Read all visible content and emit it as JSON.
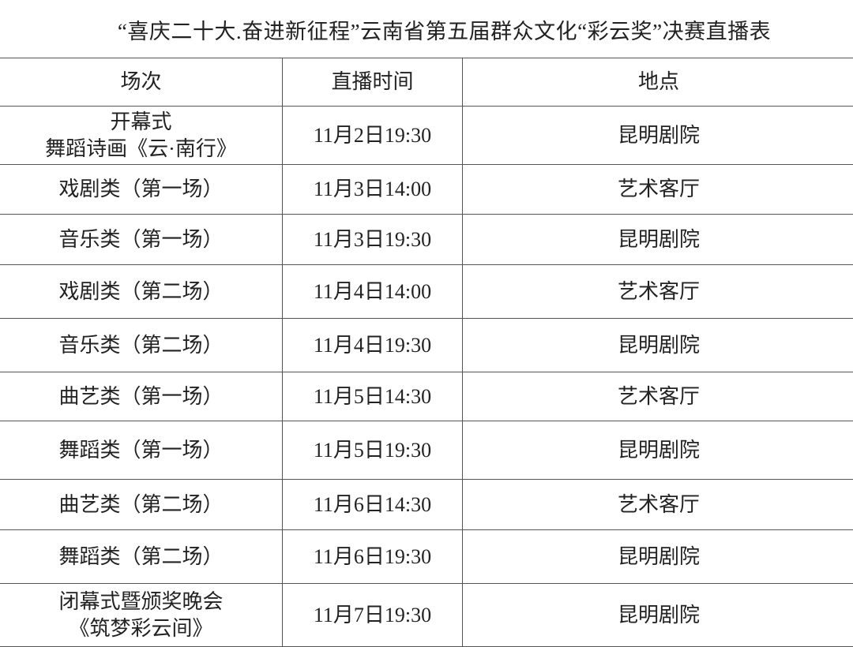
{
  "title": "“喜庆二十大.奋进新征程”云南省第五届群众文化“彩云奖”决赛直播表",
  "headers": [
    "场次",
    "直播时间",
    "地点"
  ],
  "rows": [
    {
      "session": [
        "开幕式",
        "舞蹈诗画《云·南行》"
      ],
      "time": "11月2日19:30",
      "venue": "昆明剧院"
    },
    {
      "session": [
        "戏剧类（第一场）"
      ],
      "time": "11月3日14:00",
      "venue": "艺术客厅"
    },
    {
      "session": [
        "音乐类（第一场）"
      ],
      "time": "11月3日19:30",
      "venue": "昆明剧院"
    },
    {
      "session": [
        "戏剧类（第二场）"
      ],
      "time": "11月4日14:00",
      "venue": "艺术客厅"
    },
    {
      "session": [
        "音乐类（第二场）"
      ],
      "time": "11月4日19:30",
      "venue": "昆明剧院"
    },
    {
      "session": [
        "曲艺类（第一场）"
      ],
      "time": "11月5日14:30",
      "venue": "艺术客厅"
    },
    {
      "session": [
        "舞蹈类（第一场）"
      ],
      "time": "11月5日19:30",
      "venue": "昆明剧院"
    },
    {
      "session": [
        "曲艺类（第二场）"
      ],
      "time": "11月6日14:30",
      "venue": "艺术客厅"
    },
    {
      "session": [
        "舞蹈类（第二场）"
      ],
      "time": "11月6日19:30",
      "venue": "昆明剧院"
    },
    {
      "session": [
        "闭幕式暨颁奖晚会",
        "《筑梦彩云间》"
      ],
      "time": "11月7日19:30",
      "venue": "昆明剧院"
    }
  ]
}
